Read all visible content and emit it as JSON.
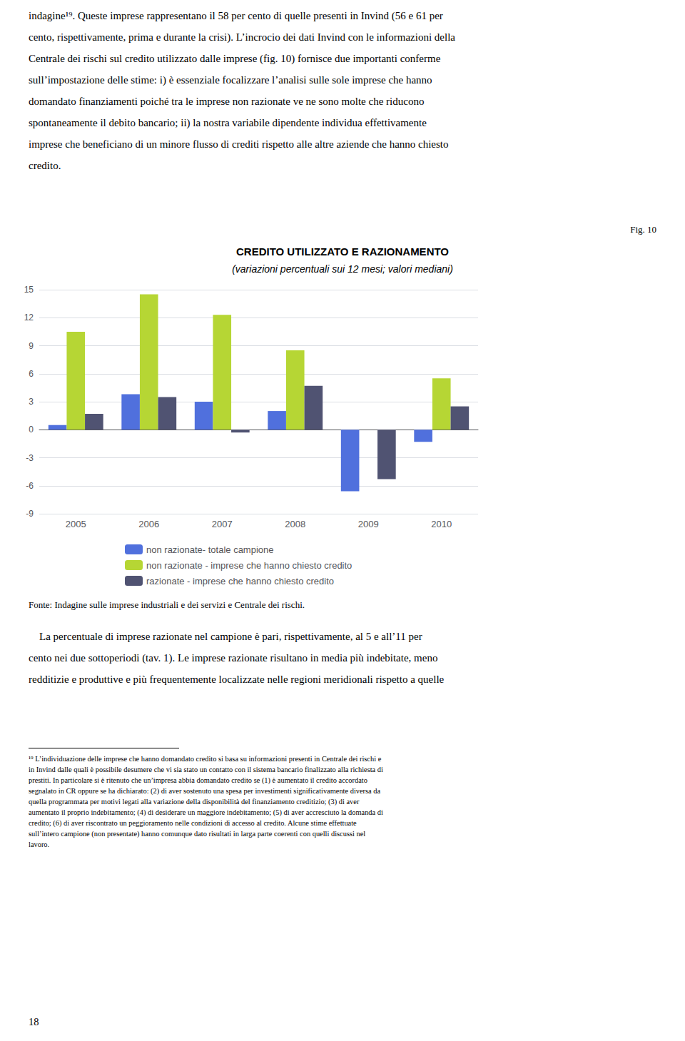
{
  "body_text": [
    "indagine¹⁹. Queste imprese rappresentano il 58 per cento di quelle presenti in Invind (56 e 61 per",
    "cento, rispettivamente, prima e durante la crisi). L’incrocio dei dati Invind con le informazioni della",
    "Centrale dei rischi sul credito utilizzato dalle imprese (fig. 10) fornisce due importanti conferme",
    "sull’impostazione delle stime: i) è essenziale focalizzare l’analisi sulle sole imprese che hanno",
    "domandato finanziamenti poiché tra le imprese non razionate ve ne sono molte che riducono",
    "spontaneamente il debito bancario; ii) la nostra variabile dipendente individua effettivamente",
    "imprese che beneficiano di un minore flusso di crediti rispetto alle altre aziende che hanno chiesto",
    "credito."
  ],
  "fig_label": "Fig. 10",
  "chart_data": {
    "type": "bar",
    "title": "CREDITO UTILIZZATO E RAZIONAMENTO",
    "subtitle": "(variazioni percentuali sui 12 mesi; valori mediani)",
    "categories": [
      2005,
      2006,
      2007,
      2008,
      2009,
      2010
    ],
    "series": [
      {
        "name": "non razionate- totale campione",
        "values": [
          0.5,
          3.8,
          3.0,
          2.0,
          -6.6,
          -1.3
        ]
      },
      {
        "name": "non razionate - imprese che hanno chiesto credito",
        "values": [
          10.5,
          14.5,
          12.3,
          8.5,
          0.0,
          5.5
        ]
      },
      {
        "name": "razionate - imprese che hanno chiesto credito",
        "values": [
          1.7,
          3.5,
          -0.3,
          4.7,
          -5.3,
          2.5
        ]
      }
    ],
    "ylim": [
      -9,
      15
    ],
    "yticks": [
      -9,
      -6,
      -3,
      0,
      3,
      6,
      9,
      12,
      15
    ],
    "grid": true,
    "legend": "bottom"
  },
  "source": "Fonte: Indagine sulle imprese industriali e dei servizi e Centrale dei rischi.",
  "bottom_text": [
    "    La percentuale di imprese razionate nel campione è pari, rispettivamente, al 5 e all’11 per",
    "cento nei due sottoperiodi (tav. 1). Le imprese razionate risultano in media più indebitate, meno",
    "redditizie e produttive e più frequentemente localizzate nelle regioni meridionali rispetto a quelle"
  ],
  "footnotes": [
    "¹⁹ L’individuazione delle imprese che hanno domandato credito si basa su informazioni presenti in Centrale dei rischi e",
    "in Invind dalle quali è possibile desumere che vi sia stato un contatto con il sistema bancario finalizzato alla richiesta di",
    "prestiti. In particolare si è ritenuto che un’impresa abbia domandato credito se (1) è aumentato il credito accordato",
    "segnalato in CR oppure se ha dichiarato: (2) di aver sostenuto una spesa per investimenti significativamente diversa da",
    "quella programmata per motivi legati alla variazione della disponibilità del finanziamento creditizio; (3) di aver",
    "aumentato il proprio indebitamento; (4) di desiderare un maggiore indebitamento; (5) di aver accresciuto la domanda di",
    "credito; (6) di aver riscontrato un peggioramento nelle condizioni di accesso al credito. Alcune stime effettuate",
    "sull’intero campione (non presentate) hanno comunque dato risultati in larga parte coerenti con quelli discussi nel",
    "lavoro."
  ],
  "page_number": "18"
}
